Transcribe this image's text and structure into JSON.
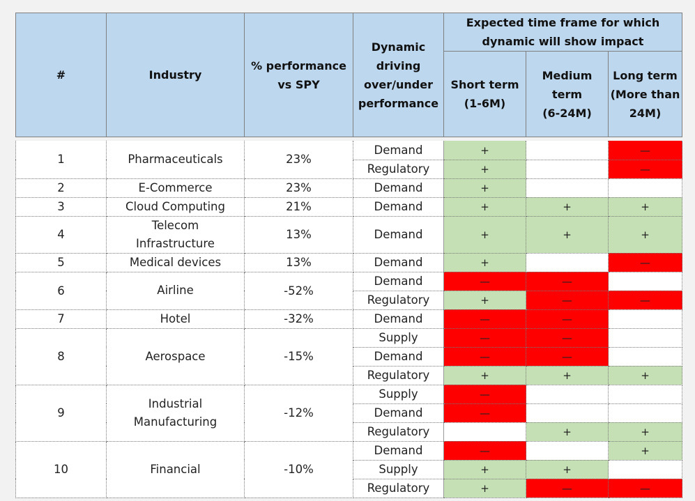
{
  "header": {
    "num": "#",
    "industry": "Industry",
    "perf": [
      "% performance",
      "vs SPY"
    ],
    "dynamic": [
      "Dynamic",
      "driving",
      "over/under",
      "performance"
    ],
    "timeframe": [
      "Expected time frame for which",
      "dynamic will show impact"
    ],
    "short": [
      "Short term",
      "(1-6M)"
    ],
    "medium": [
      "Medium",
      "term",
      "(6-24M)"
    ],
    "long": [
      "Long term",
      "(More than",
      "24M)"
    ]
  },
  "symbols": {
    "pos": "+",
    "neg": "—"
  },
  "rows": [
    {
      "num": "1",
      "industry": [
        "Pharmaceuticals"
      ],
      "perf": "23%",
      "dyn": [
        {
          "label": "Demand",
          "s": "pos",
          "m": "nil",
          "l": "neg"
        },
        {
          "label": "Regulatory",
          "s": "pos",
          "m": "nil",
          "l": "neg"
        }
      ]
    },
    {
      "num": "2",
      "industry": [
        "E-Commerce"
      ],
      "perf": "23%",
      "dyn": [
        {
          "label": "Demand",
          "s": "pos",
          "m": "nil",
          "l": "nil"
        }
      ]
    },
    {
      "num": "3",
      "industry": [
        "Cloud Computing"
      ],
      "perf": "21%",
      "dyn": [
        {
          "label": "Demand",
          "s": "pos",
          "m": "pos",
          "l": "pos"
        }
      ]
    },
    {
      "num": "4",
      "industry": [
        "Telecom",
        "Infrastructure"
      ],
      "perf": "13%",
      "dyn": [
        {
          "label": "Demand",
          "s": "pos",
          "m": "pos",
          "l": "pos",
          "tall": true
        }
      ]
    },
    {
      "num": "5",
      "industry": [
        "Medical devices"
      ],
      "perf": "13%",
      "dyn": [
        {
          "label": "Demand",
          "s": "pos",
          "m": "nil",
          "l": "neg"
        }
      ]
    },
    {
      "num": "6",
      "industry": [
        "Airline"
      ],
      "perf": "-52%",
      "dyn": [
        {
          "label": "Demand",
          "s": "neg",
          "m": "neg",
          "l": "nil"
        },
        {
          "label": "Regulatory",
          "s": "pos",
          "m": "neg",
          "l": "neg"
        }
      ]
    },
    {
      "num": "7",
      "industry": [
        "Hotel"
      ],
      "perf": "-32%",
      "dyn": [
        {
          "label": "Demand",
          "s": "neg",
          "m": "neg",
          "l": "nil"
        }
      ]
    },
    {
      "num": "8",
      "industry": [
        "Aerospace"
      ],
      "perf": "-15%",
      "dyn": [
        {
          "label": "Supply",
          "s": "neg",
          "m": "neg",
          "l": "nil"
        },
        {
          "label": "Demand",
          "s": "neg",
          "m": "neg",
          "l": "nil"
        },
        {
          "label": "Regulatory",
          "s": "pos",
          "m": "pos",
          "l": "pos"
        }
      ]
    },
    {
      "num": "9",
      "industry": [
        "Industrial",
        "Manufacturing"
      ],
      "perf": "-12%",
      "dyn": [
        {
          "label": "Supply",
          "s": "neg",
          "m": "nil",
          "l": "nil"
        },
        {
          "label": "Demand",
          "s": "neg",
          "m": "nil",
          "l": "nil"
        },
        {
          "label": "Regulatory",
          "s": "nil",
          "m": "pos",
          "l": "pos"
        }
      ]
    },
    {
      "num": "10",
      "industry": [
        "Financial"
      ],
      "perf": "-10%",
      "dyn": [
        {
          "label": "Demand",
          "s": "neg",
          "m": "nil",
          "l": "pos"
        },
        {
          "label": "Supply",
          "s": "pos",
          "m": "pos",
          "l": "nil"
        },
        {
          "label": "Regulatory",
          "s": "pos",
          "m": "neg",
          "l": "neg"
        }
      ]
    }
  ]
}
